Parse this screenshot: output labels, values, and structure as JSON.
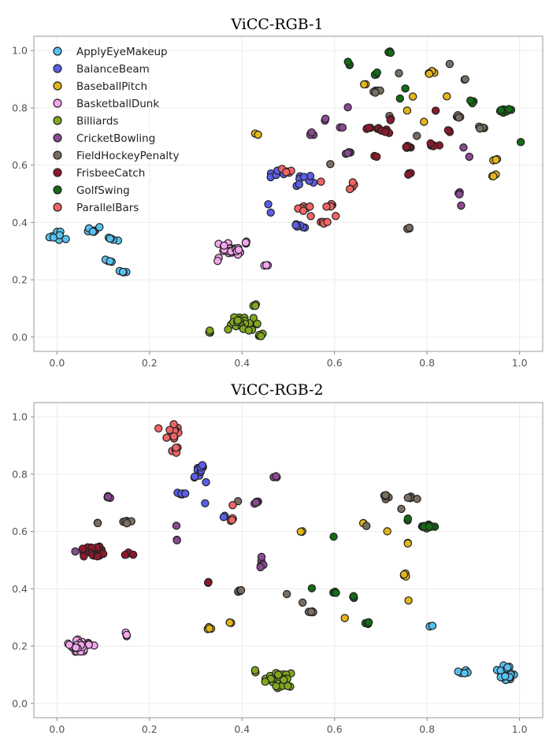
{
  "chart_data": [
    {
      "type": "scatter",
      "title": "ViCC-RGB-1",
      "xlim": [
        -0.05,
        1.05
      ],
      "ylim": [
        -0.05,
        1.05
      ],
      "xticks": [
        "0.0",
        "0.2",
        "0.4",
        "0.6",
        "0.8",
        "1.0"
      ],
      "yticks": [
        "0.0",
        "0.2",
        "0.4",
        "0.6",
        "0.8",
        "1.0"
      ],
      "grid": true,
      "legend": "top-left",
      "series": [
        {
          "name": "ApplyEyeMakeup",
          "color": "#56c2f0",
          "clusters": [
            [
              0.0,
              0.35,
              0.025,
              0.02,
              8
            ],
            [
              0.08,
              0.37,
              0.02,
              0.02,
              7
            ],
            [
              0.12,
              0.34,
              0.015,
              0.02,
              5
            ],
            [
              0.11,
              0.26,
              0.015,
              0.01,
              4
            ],
            [
              0.14,
              0.23,
              0.02,
              0.01,
              4
            ]
          ]
        },
        {
          "name": "BalanceBeam",
          "color": "#5b5ee8",
          "clusters": [
            [
              0.47,
              0.57,
              0.02,
              0.015,
              5
            ],
            [
              0.54,
              0.55,
              0.03,
              0.03,
              8
            ],
            [
              0.52,
              0.39,
              0.02,
              0.015,
              6
            ],
            [
              0.46,
              0.45,
              0.005,
              0.035,
              2
            ]
          ]
        },
        {
          "name": "BaseballPitch",
          "color": "#e3b51a",
          "clusters": [
            [
              0.43,
              0.71,
              0.005,
              0.005,
              2
            ],
            [
              0.66,
              0.88,
              0.008,
              0.008,
              2
            ],
            [
              0.81,
              0.92,
              0.015,
              0.01,
              5
            ],
            [
              0.84,
              0.84,
              0.005,
              0.005,
              1
            ],
            [
              0.945,
              0.62,
              0.008,
              0.01,
              3
            ],
            [
              0.945,
              0.56,
              0.008,
              0.008,
              3
            ],
            [
              0.76,
              0.79,
              0.005,
              0.005,
              1
            ],
            [
              0.79,
              0.75,
              0.005,
              0.005,
              1
            ],
            [
              0.77,
              0.84,
              0.005,
              0.005,
              1
            ]
          ]
        },
        {
          "name": "BasketballDunk",
          "color": "#f5a6f0",
          "clusters": [
            [
              0.38,
              0.3,
              0.035,
              0.03,
              30
            ],
            [
              0.41,
              0.33,
              0.01,
              0.008,
              3
            ],
            [
              0.45,
              0.25,
              0.008,
              0.005,
              3
            ]
          ]
        },
        {
          "name": "Billiards",
          "color": "#80a81c",
          "clusters": [
            [
              0.4,
              0.05,
              0.035,
              0.03,
              28
            ],
            [
              0.33,
              0.02,
              0.005,
              0.005,
              3
            ],
            [
              0.44,
              0.01,
              0.01,
              0.01,
              4
            ],
            [
              0.43,
              0.11,
              0.008,
              0.008,
              3
            ]
          ]
        },
        {
          "name": "CricketBowling",
          "color": "#8a4a91",
          "clusters": [
            [
              0.55,
              0.71,
              0.008,
              0.008,
              4
            ],
            [
              0.58,
              0.76,
              0.005,
              0.005,
              2
            ],
            [
              0.63,
              0.8,
              0.005,
              0.005,
              1
            ],
            [
              0.63,
              0.64,
              0.01,
              0.005,
              4
            ],
            [
              0.87,
              0.5,
              0.008,
              0.008,
              5
            ],
            [
              0.875,
              0.46,
              0.005,
              0.005,
              1
            ],
            [
              0.61,
              0.73,
              0.008,
              0.005,
              2
            ],
            [
              0.88,
              0.66,
              0.005,
              0.005,
              1
            ],
            [
              0.89,
              0.63,
              0.005,
              0.005,
              1
            ]
          ]
        },
        {
          "name": "FieldHockeyPenalty",
          "color": "#7a6e62",
          "clusters": [
            [
              0.69,
              0.86,
              0.008,
              0.008,
              5
            ],
            [
              0.69,
              0.92,
              0.005,
              0.005,
              2
            ],
            [
              0.74,
              0.92,
              0.005,
              0.005,
              1
            ],
            [
              0.88,
              0.9,
              0.005,
              0.005,
              2
            ],
            [
              0.87,
              0.77,
              0.01,
              0.008,
              5
            ],
            [
              0.92,
              0.73,
              0.01,
              0.008,
              5
            ],
            [
              0.85,
              0.95,
              0.005,
              0.005,
              1
            ],
            [
              0.76,
              0.38,
              0.005,
              0.005,
              3
            ],
            [
              0.59,
              0.6,
              0.005,
              0.005,
              1
            ],
            [
              0.72,
              0.77,
              0.005,
              0.005,
              1
            ],
            [
              0.78,
              0.7,
              0.005,
              0.005,
              1
            ]
          ]
        },
        {
          "name": "FrisbeeCatch",
          "color": "#8b1a2b",
          "clusters": [
            [
              0.68,
              0.73,
              0.02,
              0.008,
              6
            ],
            [
              0.71,
              0.72,
              0.02,
              0.01,
              6
            ],
            [
              0.76,
              0.66,
              0.015,
              0.008,
              5
            ],
            [
              0.81,
              0.67,
              0.02,
              0.01,
              5
            ],
            [
              0.85,
              0.72,
              0.01,
              0.01,
              3
            ],
            [
              0.69,
              0.63,
              0.005,
              0.005,
              2
            ],
            [
              0.76,
              0.57,
              0.008,
              0.005,
              3
            ],
            [
              0.82,
              0.79,
              0.005,
              0.005,
              1
            ],
            [
              0.72,
              0.76,
              0.005,
              0.005,
              2
            ]
          ]
        },
        {
          "name": "GolfSwing",
          "color": "#146b14",
          "clusters": [
            [
              0.72,
              0.99,
              0.005,
              0.008,
              3
            ],
            [
              0.63,
              0.95,
              0.005,
              0.02,
              3
            ],
            [
              0.69,
              0.92,
              0.005,
              0.005,
              2
            ],
            [
              0.97,
              0.79,
              0.015,
              0.01,
              8
            ],
            [
              0.9,
              0.82,
              0.01,
              0.008,
              3
            ],
            [
              1.0,
              0.68,
              0.005,
              0.005,
              1
            ],
            [
              0.75,
              0.87,
              0.005,
              0.005,
              1
            ],
            [
              0.74,
              0.83,
              0.005,
              0.005,
              1
            ]
          ]
        },
        {
          "name": "ParallelBars",
          "color": "#f06464",
          "clusters": [
            [
              0.5,
              0.58,
              0.015,
              0.008,
              6
            ],
            [
              0.53,
              0.45,
              0.015,
              0.01,
              6
            ],
            [
              0.58,
              0.4,
              0.01,
              0.008,
              5
            ],
            [
              0.59,
              0.46,
              0.01,
              0.008,
              4
            ],
            [
              0.64,
              0.53,
              0.008,
              0.015,
              4
            ],
            [
              0.57,
              0.54,
              0.005,
              0.005,
              1
            ],
            [
              0.55,
              0.42,
              0.005,
              0.005,
              1
            ],
            [
              0.6,
              0.42,
              0.005,
              0.005,
              1
            ]
          ]
        }
      ]
    },
    {
      "type": "scatter",
      "title": "ViCC-RGB-2",
      "xlim": [
        -0.05,
        1.05
      ],
      "ylim": [
        -0.05,
        1.05
      ],
      "xticks": [
        "0.0",
        "0.2",
        "0.4",
        "0.6",
        "0.8",
        "1.0"
      ],
      "yticks": [
        "0.0",
        "0.2",
        "0.4",
        "0.6",
        "0.8",
        "1.0"
      ],
      "grid": true,
      "legend": "none",
      "series": [
        {
          "name": "ApplyEyeMakeup",
          "color": "#56c2f0",
          "clusters": [
            [
              0.97,
              0.1,
              0.02,
              0.04,
              28
            ],
            [
              0.88,
              0.11,
              0.015,
              0.015,
              6
            ],
            [
              0.81,
              0.27,
              0.005,
              0.005,
              3
            ]
          ]
        },
        {
          "name": "BalanceBeam",
          "color": "#5b5ee8",
          "clusters": [
            [
              0.31,
              0.82,
              0.015,
              0.025,
              9
            ],
            [
              0.27,
              0.73,
              0.015,
              0.008,
              6
            ],
            [
              0.3,
              0.79,
              0.005,
              0.005,
              2
            ],
            [
              0.32,
              0.77,
              0.005,
              0.005,
              1
            ],
            [
              0.36,
              0.65,
              0.005,
              0.01,
              2
            ],
            [
              0.32,
              0.7,
              0.005,
              0.005,
              1
            ]
          ]
        },
        {
          "name": "BaseballPitch",
          "color": "#e3b51a",
          "clusters": [
            [
              0.53,
              0.6,
              0.005,
              0.005,
              3
            ],
            [
              0.66,
              0.63,
              0.005,
              0.005,
              2
            ],
            [
              0.71,
              0.6,
              0.005,
              0.005,
              1
            ],
            [
              0.75,
              0.45,
              0.01,
              0.008,
              4
            ],
            [
              0.76,
              0.56,
              0.005,
              0.005,
              2
            ],
            [
              0.76,
              0.36,
              0.005,
              0.005,
              1
            ],
            [
              0.33,
              0.26,
              0.008,
              0.008,
              4
            ],
            [
              0.375,
              0.28,
              0.005,
              0.008,
              3
            ],
            [
              0.62,
              0.3,
              0.005,
              0.005,
              1
            ]
          ]
        },
        {
          "name": "BasketballDunk",
          "color": "#f5a6f0",
          "clusters": [
            [
              0.05,
              0.2,
              0.03,
              0.03,
              30
            ],
            [
              0.15,
              0.24,
              0.005,
              0.015,
              3
            ]
          ]
        },
        {
          "name": "Billiards",
          "color": "#80a81c",
          "clusters": [
            [
              0.48,
              0.08,
              0.035,
              0.03,
              30
            ],
            [
              0.43,
              0.11,
              0.008,
              0.005,
              2
            ]
          ]
        },
        {
          "name": "CricketBowling",
          "color": "#8a4a91",
          "clusters": [
            [
              0.11,
              0.72,
              0.008,
              0.005,
              4
            ],
            [
              0.43,
              0.7,
              0.008,
              0.005,
              5
            ],
            [
              0.47,
              0.79,
              0.008,
              0.005,
              3
            ],
            [
              0.44,
              0.49,
              0.008,
              0.03,
              5
            ],
            [
              0.26,
              0.57,
              0.005,
              0.005,
              2
            ],
            [
              0.26,
              0.62,
              0.005,
              0.005,
              1
            ],
            [
              0.04,
              0.53,
              0.005,
              0.005,
              1
            ]
          ]
        },
        {
          "name": "FieldHockeyPenalty",
          "color": "#7a6e62",
          "clusters": [
            [
              0.15,
              0.63,
              0.01,
              0.01,
              5
            ],
            [
              0.09,
              0.63,
              0.005,
              0.005,
              2
            ],
            [
              0.71,
              0.72,
              0.008,
              0.01,
              6
            ],
            [
              0.76,
              0.72,
              0.008,
              0.008,
              4
            ],
            [
              0.78,
              0.71,
              0.005,
              0.005,
              1
            ],
            [
              0.55,
              0.32,
              0.01,
              0.005,
              5
            ],
            [
              0.4,
              0.39,
              0.01,
              0.008,
              4
            ],
            [
              0.53,
              0.35,
              0.005,
              0.005,
              1
            ],
            [
              0.5,
              0.38,
              0.005,
              0.005,
              1
            ],
            [
              0.67,
              0.62,
              0.005,
              0.005,
              1
            ],
            [
              0.39,
              0.71,
              0.005,
              0.005,
              1
            ],
            [
              0.74,
              0.68,
              0.005,
              0.005,
              1
            ]
          ]
        },
        {
          "name": "FrisbeeCatch",
          "color": "#8b1a2b",
          "clusters": [
            [
              0.08,
              0.53,
              0.03,
              0.03,
              26
            ],
            [
              0.155,
              0.52,
              0.01,
              0.015,
              4
            ],
            [
              0.33,
              0.42,
              0.008,
              0.008,
              3
            ]
          ]
        },
        {
          "name": "GolfSwing",
          "color": "#146b14",
          "clusters": [
            [
              0.8,
              0.62,
              0.015,
              0.01,
              12
            ],
            [
              0.76,
              0.64,
              0.005,
              0.005,
              2
            ],
            [
              0.6,
              0.39,
              0.005,
              0.008,
              3
            ],
            [
              0.64,
              0.37,
              0.005,
              0.008,
              4
            ],
            [
              0.67,
              0.28,
              0.008,
              0.005,
              4
            ],
            [
              0.6,
              0.58,
              0.005,
              0.005,
              1
            ],
            [
              0.55,
              0.4,
              0.005,
              0.005,
              1
            ]
          ]
        },
        {
          "name": "ParallelBars",
          "color": "#f06464",
          "clusters": [
            [
              0.25,
              0.95,
              0.02,
              0.03,
              18
            ],
            [
              0.26,
              0.88,
              0.015,
              0.015,
              6
            ],
            [
              0.38,
              0.64,
              0.008,
              0.01,
              5
            ],
            [
              0.22,
              0.96,
              0.005,
              0.005,
              1
            ],
            [
              0.38,
              0.69,
              0.005,
              0.005,
              1
            ]
          ]
        }
      ]
    }
  ]
}
